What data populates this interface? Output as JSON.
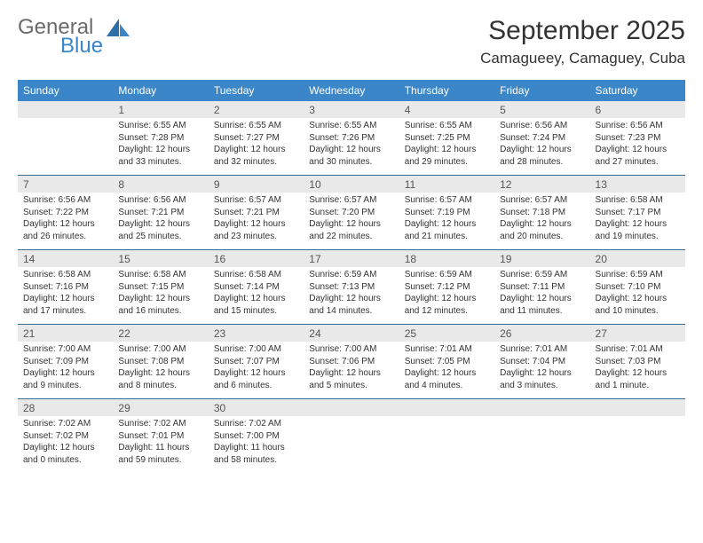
{
  "logo": {
    "text1": "General",
    "text2": "Blue"
  },
  "title": "September 2025",
  "location": "Camagueey, Camaguey, Cuba",
  "dayHeaders": [
    "Sunday",
    "Monday",
    "Tuesday",
    "Wednesday",
    "Thursday",
    "Friday",
    "Saturday"
  ],
  "style": {
    "headerBg": "#3a86c8",
    "headerText": "#ffffff",
    "dayNumBg": "#e9e9e9",
    "bodyFontSize": 10,
    "titleFontSize": 30,
    "locationFontSize": 17,
    "weekBorderColor": "#3a6a94"
  },
  "weeks": [
    {
      "nums": [
        "",
        "1",
        "2",
        "3",
        "4",
        "5",
        "6"
      ],
      "cells": [
        {
          "empty": true
        },
        {
          "sunrise": "Sunrise: 6:55 AM",
          "sunset": "Sunset: 7:28 PM",
          "daylight": "Daylight: 12 hours and 33 minutes."
        },
        {
          "sunrise": "Sunrise: 6:55 AM",
          "sunset": "Sunset: 7:27 PM",
          "daylight": "Daylight: 12 hours and 32 minutes."
        },
        {
          "sunrise": "Sunrise: 6:55 AM",
          "sunset": "Sunset: 7:26 PM",
          "daylight": "Daylight: 12 hours and 30 minutes."
        },
        {
          "sunrise": "Sunrise: 6:55 AM",
          "sunset": "Sunset: 7:25 PM",
          "daylight": "Daylight: 12 hours and 29 minutes."
        },
        {
          "sunrise": "Sunrise: 6:56 AM",
          "sunset": "Sunset: 7:24 PM",
          "daylight": "Daylight: 12 hours and 28 minutes."
        },
        {
          "sunrise": "Sunrise: 6:56 AM",
          "sunset": "Sunset: 7:23 PM",
          "daylight": "Daylight: 12 hours and 27 minutes."
        }
      ]
    },
    {
      "nums": [
        "7",
        "8",
        "9",
        "10",
        "11",
        "12",
        "13"
      ],
      "cells": [
        {
          "sunrise": "Sunrise: 6:56 AM",
          "sunset": "Sunset: 7:22 PM",
          "daylight": "Daylight: 12 hours and 26 minutes."
        },
        {
          "sunrise": "Sunrise: 6:56 AM",
          "sunset": "Sunset: 7:21 PM",
          "daylight": "Daylight: 12 hours and 25 minutes."
        },
        {
          "sunrise": "Sunrise: 6:57 AM",
          "sunset": "Sunset: 7:21 PM",
          "daylight": "Daylight: 12 hours and 23 minutes."
        },
        {
          "sunrise": "Sunrise: 6:57 AM",
          "sunset": "Sunset: 7:20 PM",
          "daylight": "Daylight: 12 hours and 22 minutes."
        },
        {
          "sunrise": "Sunrise: 6:57 AM",
          "sunset": "Sunset: 7:19 PM",
          "daylight": "Daylight: 12 hours and 21 minutes."
        },
        {
          "sunrise": "Sunrise: 6:57 AM",
          "sunset": "Sunset: 7:18 PM",
          "daylight": "Daylight: 12 hours and 20 minutes."
        },
        {
          "sunrise": "Sunrise: 6:58 AM",
          "sunset": "Sunset: 7:17 PM",
          "daylight": "Daylight: 12 hours and 19 minutes."
        }
      ]
    },
    {
      "nums": [
        "14",
        "15",
        "16",
        "17",
        "18",
        "19",
        "20"
      ],
      "cells": [
        {
          "sunrise": "Sunrise: 6:58 AM",
          "sunset": "Sunset: 7:16 PM",
          "daylight": "Daylight: 12 hours and 17 minutes."
        },
        {
          "sunrise": "Sunrise: 6:58 AM",
          "sunset": "Sunset: 7:15 PM",
          "daylight": "Daylight: 12 hours and 16 minutes."
        },
        {
          "sunrise": "Sunrise: 6:58 AM",
          "sunset": "Sunset: 7:14 PM",
          "daylight": "Daylight: 12 hours and 15 minutes."
        },
        {
          "sunrise": "Sunrise: 6:59 AM",
          "sunset": "Sunset: 7:13 PM",
          "daylight": "Daylight: 12 hours and 14 minutes."
        },
        {
          "sunrise": "Sunrise: 6:59 AM",
          "sunset": "Sunset: 7:12 PM",
          "daylight": "Daylight: 12 hours and 12 minutes."
        },
        {
          "sunrise": "Sunrise: 6:59 AM",
          "sunset": "Sunset: 7:11 PM",
          "daylight": "Daylight: 12 hours and 11 minutes."
        },
        {
          "sunrise": "Sunrise: 6:59 AM",
          "sunset": "Sunset: 7:10 PM",
          "daylight": "Daylight: 12 hours and 10 minutes."
        }
      ]
    },
    {
      "nums": [
        "21",
        "22",
        "23",
        "24",
        "25",
        "26",
        "27"
      ],
      "cells": [
        {
          "sunrise": "Sunrise: 7:00 AM",
          "sunset": "Sunset: 7:09 PM",
          "daylight": "Daylight: 12 hours and 9 minutes."
        },
        {
          "sunrise": "Sunrise: 7:00 AM",
          "sunset": "Sunset: 7:08 PM",
          "daylight": "Daylight: 12 hours and 8 minutes."
        },
        {
          "sunrise": "Sunrise: 7:00 AM",
          "sunset": "Sunset: 7:07 PM",
          "daylight": "Daylight: 12 hours and 6 minutes."
        },
        {
          "sunrise": "Sunrise: 7:00 AM",
          "sunset": "Sunset: 7:06 PM",
          "daylight": "Daylight: 12 hours and 5 minutes."
        },
        {
          "sunrise": "Sunrise: 7:01 AM",
          "sunset": "Sunset: 7:05 PM",
          "daylight": "Daylight: 12 hours and 4 minutes."
        },
        {
          "sunrise": "Sunrise: 7:01 AM",
          "sunset": "Sunset: 7:04 PM",
          "daylight": "Daylight: 12 hours and 3 minutes."
        },
        {
          "sunrise": "Sunrise: 7:01 AM",
          "sunset": "Sunset: 7:03 PM",
          "daylight": "Daylight: 12 hours and 1 minute."
        }
      ]
    },
    {
      "nums": [
        "28",
        "29",
        "30",
        "",
        "",
        "",
        ""
      ],
      "cells": [
        {
          "sunrise": "Sunrise: 7:02 AM",
          "sunset": "Sunset: 7:02 PM",
          "daylight": "Daylight: 12 hours and 0 minutes."
        },
        {
          "sunrise": "Sunrise: 7:02 AM",
          "sunset": "Sunset: 7:01 PM",
          "daylight": "Daylight: 11 hours and 59 minutes."
        },
        {
          "sunrise": "Sunrise: 7:02 AM",
          "sunset": "Sunset: 7:00 PM",
          "daylight": "Daylight: 11 hours and 58 minutes."
        },
        {
          "empty": true
        },
        {
          "empty": true
        },
        {
          "empty": true
        },
        {
          "empty": true
        }
      ]
    }
  ]
}
